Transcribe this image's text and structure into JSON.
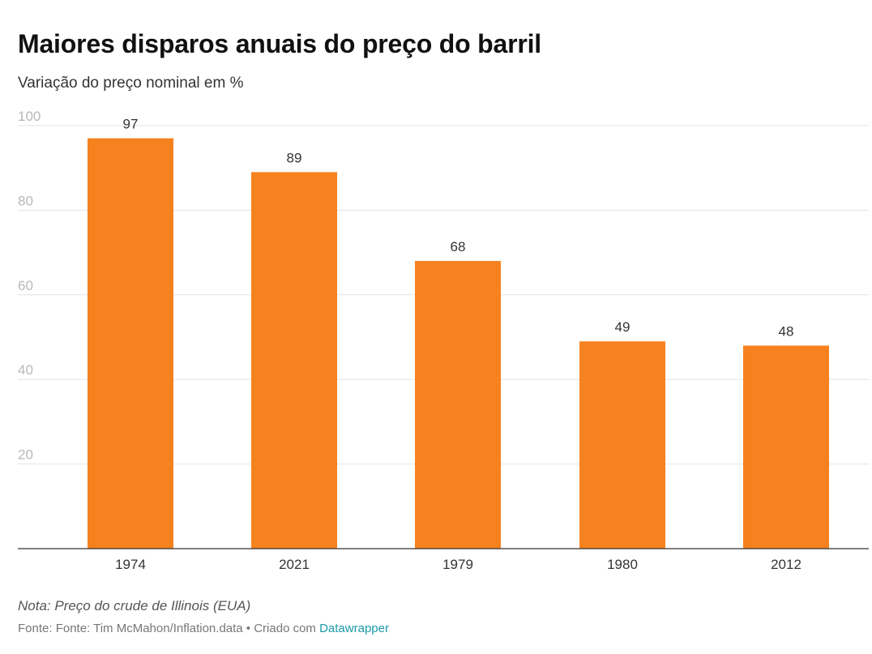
{
  "header": {
    "title": "Maiores disparos anuais do preço do barril",
    "subtitle": "Variação do preço nominal em %"
  },
  "chart_data": {
    "type": "bar",
    "categories": [
      "1974",
      "2021",
      "1979",
      "1980",
      "2012"
    ],
    "values": [
      97,
      89,
      68,
      49,
      48
    ],
    "data_labels": [
      "97",
      "89",
      "68",
      "49",
      "48"
    ],
    "yticks": [
      "100",
      "80",
      "60",
      "40",
      "20"
    ],
    "ytick_values": [
      100,
      80,
      60,
      40,
      20
    ],
    "ylim": [
      0,
      100
    ],
    "grid": true,
    "bar_color": "#f5821f"
  },
  "footer": {
    "note": "Nota: Preço do crude de Illinois (EUA)",
    "source_prefix": "Fonte: Fonte: Tim McMahon/Inflation.data • Criado com ",
    "link_text": "Datawrapper"
  }
}
